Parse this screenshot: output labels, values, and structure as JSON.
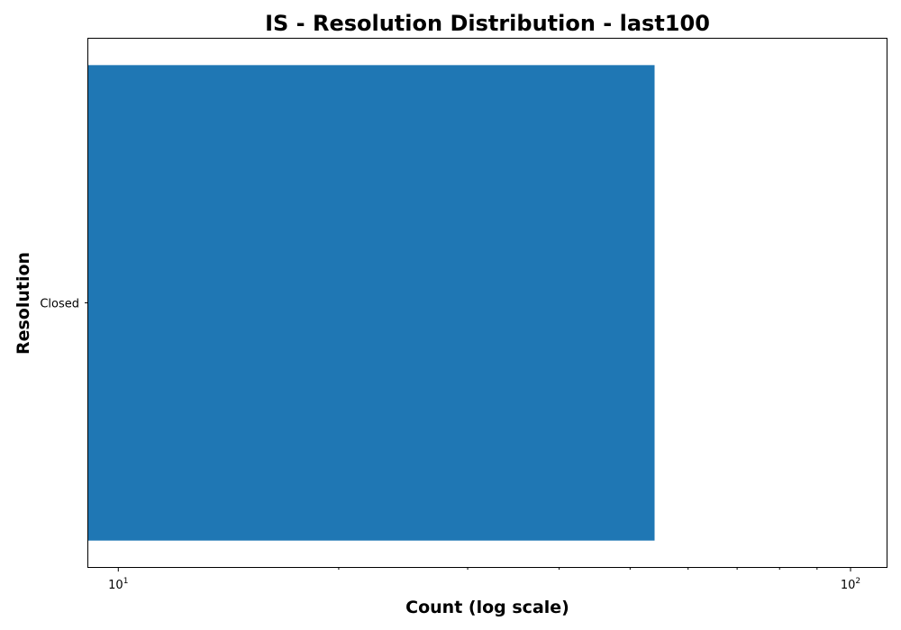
{
  "chart_data": {
    "type": "bar",
    "orientation": "horizontal",
    "title": "IS - Resolution Distribution - last100",
    "xlabel": "Count (log scale)",
    "ylabel": "Resolution",
    "x_scale": "log",
    "xlim": [
      9.1,
      112
    ],
    "categories": [
      "Closed"
    ],
    "values": [
      54
    ],
    "x_ticks": [
      {
        "value": 10,
        "base": "10",
        "exponent": "1"
      },
      {
        "value": 100,
        "base": "10",
        "exponent": "2"
      }
    ],
    "grid": false,
    "legend": "none",
    "colors": {
      "bar": "#1f77b4",
      "axes": "#000000",
      "background": "#ffffff"
    }
  }
}
